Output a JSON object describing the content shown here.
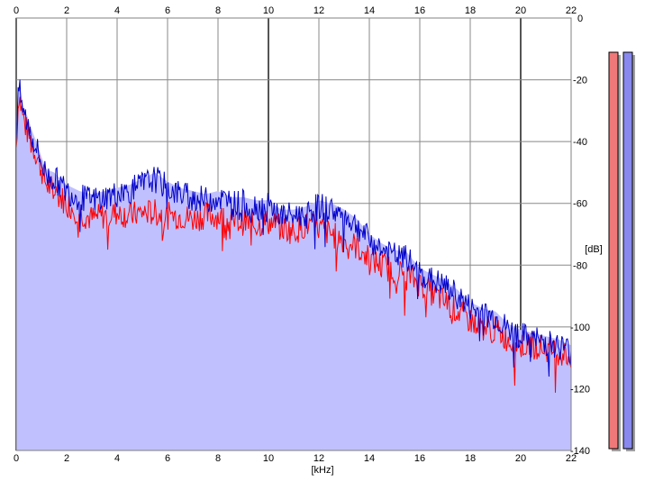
{
  "chart_data": {
    "type": "area",
    "title": "",
    "xlabel": "[kHz]",
    "ylabel": "[dB]",
    "xlim": [
      0,
      22
    ],
    "ylim": [
      -140,
      0
    ],
    "x_ticks": [
      0,
      2,
      4,
      6,
      8,
      10,
      12,
      14,
      16,
      18,
      20,
      22
    ],
    "y_ticks": [
      0,
      -20,
      -40,
      -60,
      -80,
      -100,
      -120,
      -140
    ],
    "grid": true,
    "legend": "none",
    "colors": {
      "fill": "#c0c0ff",
      "red": "#ff0000",
      "blue": "#0000c8",
      "grid": "#888888",
      "grid_major": "#555555"
    },
    "series": [
      {
        "color": "red",
        "x": [
          0,
          0.1,
          0.2,
          0.3,
          0.4,
          0.5,
          0.6,
          0.8,
          1.0,
          1.2,
          1.5,
          2.0,
          2.5,
          3.0,
          3.5,
          4.0,
          4.5,
          5.0,
          5.5,
          6.0,
          6.5,
          7.0,
          7.5,
          8.0,
          8.5,
          9.0,
          9.5,
          10.0,
          10.5,
          11.0,
          11.5,
          12.0,
          12.5,
          13.0,
          13.5,
          14.0,
          14.5,
          15.0,
          15.5,
          16.0,
          16.5,
          17.0,
          17.5,
          18.0,
          18.5,
          19.0,
          19.5,
          20.0,
          20.5,
          21.0,
          21.5,
          22.0
        ],
        "y": [
          -42,
          -24,
          -29,
          -33,
          -36,
          -38,
          -41,
          -44,
          -49,
          -54,
          -56,
          -60,
          -63,
          -65,
          -64,
          -63,
          -64,
          -63,
          -63,
          -64,
          -64,
          -65,
          -64,
          -64,
          -66,
          -66,
          -67,
          -66,
          -68,
          -69,
          -67,
          -68,
          -70,
          -72,
          -74,
          -78,
          -80,
          -82,
          -83,
          -86,
          -89,
          -92,
          -95,
          -98,
          -100,
          -101,
          -104,
          -106,
          -106,
          -107,
          -108,
          -110
        ]
      },
      {
        "color": "blue",
        "x": [
          0,
          0.1,
          0.2,
          0.3,
          0.4,
          0.5,
          0.6,
          0.8,
          1.0,
          1.2,
          1.5,
          2.0,
          2.5,
          3.0,
          3.5,
          4.0,
          4.5,
          5.0,
          5.5,
          6.0,
          6.5,
          7.0,
          7.5,
          8.0,
          8.5,
          9.0,
          9.5,
          10.0,
          10.5,
          11.0,
          11.5,
          12.0,
          12.5,
          13.0,
          13.5,
          14.0,
          14.5,
          15.0,
          15.5,
          16.0,
          16.5,
          17.0,
          17.5,
          18.0,
          18.5,
          19.0,
          19.5,
          20.0,
          20.5,
          21.0,
          21.5,
          22.0
        ],
        "y": [
          -40,
          -22,
          -27,
          -31,
          -33,
          -35,
          -38,
          -42,
          -47,
          -51,
          -52,
          -56,
          -58,
          -59,
          -58,
          -57,
          -56,
          -54,
          -52,
          -55,
          -57,
          -58,
          -59,
          -58,
          -60,
          -60,
          -61,
          -61,
          -64,
          -64,
          -63,
          -61,
          -62,
          -64,
          -67,
          -72,
          -75,
          -77,
          -78,
          -83,
          -85,
          -87,
          -90,
          -94,
          -96,
          -97,
          -101,
          -103,
          -104,
          -105,
          -106,
          -108
        ]
      }
    ]
  },
  "level_meters": [
    {
      "color": "red",
      "level": 0.93
    },
    {
      "color": "blue",
      "level": 0.93
    }
  ]
}
